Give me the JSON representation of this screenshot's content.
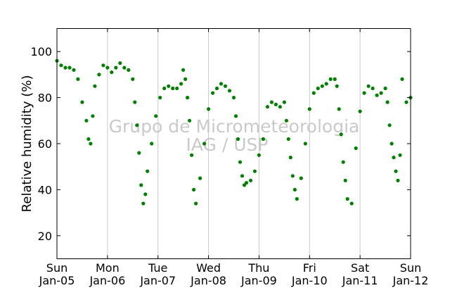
{
  "chart_data": {
    "type": "scatter",
    "ylabel": "Relative humidity (%)",
    "ylim": [
      10,
      110
    ],
    "yticks": [
      20,
      40,
      60,
      80,
      100
    ],
    "xlim": [
      "Jan-05",
      "Jan-12"
    ],
    "xticks": [
      {
        "day": "Sun",
        "date": "Jan-05"
      },
      {
        "day": "Mon",
        "date": "Jan-06"
      },
      {
        "day": "Tue",
        "date": "Jan-07"
      },
      {
        "day": "Wed",
        "date": "Jan-08"
      },
      {
        "day": "Thu",
        "date": "Jan-09"
      },
      {
        "day": "Fri",
        "date": "Jan-10"
      },
      {
        "day": "Sat",
        "date": "Jan-11"
      },
      {
        "day": "Sun",
        "date": "Jan-12"
      }
    ],
    "vertical_grid": true,
    "watermark": [
      "Grupo de Micrometeorologia",
      "IAG / USP"
    ],
    "marker_color": "#007f00",
    "series": [
      {
        "name": "",
        "x": [
          "Jan-05 00:00",
          "Jan-05 02:00",
          "Jan-05 04:00",
          "Jan-05 06:00",
          "Jan-05 08:00",
          "Jan-05 10:00",
          "Jan-05 12:00",
          "Jan-05 14:00",
          "Jan-05 15:00",
          "Jan-05 16:00",
          "Jan-05 17:00",
          "Jan-05 18:00",
          "Jan-05 20:00",
          "Jan-05 22:00",
          "Jan-06 00:00",
          "Jan-06 02:00",
          "Jan-06 04:00",
          "Jan-06 06:00",
          "Jan-06 08:00",
          "Jan-06 10:00",
          "Jan-06 12:00",
          "Jan-06 13:00",
          "Jan-06 14:00",
          "Jan-06 15:00",
          "Jan-06 16:00",
          "Jan-06 17:00",
          "Jan-06 18:00",
          "Jan-06 19:00",
          "Jan-06 21:00",
          "Jan-06 23:00",
          "Jan-07 01:00",
          "Jan-07 03:00",
          "Jan-07 05:00",
          "Jan-07 07:00",
          "Jan-07 09:00",
          "Jan-07 11:00",
          "Jan-07 12:00",
          "Jan-07 13:00",
          "Jan-07 14:00",
          "Jan-07 15:00",
          "Jan-07 16:00",
          "Jan-07 17:00",
          "Jan-07 18:00",
          "Jan-07 20:00",
          "Jan-07 22:00",
          "Jan-08 00:00",
          "Jan-08 02:00",
          "Jan-08 04:00",
          "Jan-08 06:00",
          "Jan-08 08:00",
          "Jan-08 10:00",
          "Jan-08 12:00",
          "Jan-08 13:00",
          "Jan-08 14:00",
          "Jan-08 15:00",
          "Jan-08 16:00",
          "Jan-08 17:00",
          "Jan-08 18:00",
          "Jan-08 20:00",
          "Jan-08 22:00",
          "Jan-09 00:00",
          "Jan-09 02:00",
          "Jan-09 04:00",
          "Jan-09 06:00",
          "Jan-09 08:00",
          "Jan-09 10:00",
          "Jan-09 12:00",
          "Jan-09 13:00",
          "Jan-09 14:00",
          "Jan-09 15:00",
          "Jan-09 16:00",
          "Jan-09 17:00",
          "Jan-09 18:00",
          "Jan-09 20:00",
          "Jan-09 22:00",
          "Jan-10 00:00",
          "Jan-10 02:00",
          "Jan-10 04:00",
          "Jan-10 06:00",
          "Jan-10 08:00",
          "Jan-10 10:00",
          "Jan-10 12:00",
          "Jan-10 13:00",
          "Jan-10 14:00",
          "Jan-10 15:00",
          "Jan-10 16:00",
          "Jan-10 17:00",
          "Jan-10 18:00",
          "Jan-10 20:00",
          "Jan-10 22:00",
          "Jan-11 00:00",
          "Jan-11 02:00",
          "Jan-11 04:00",
          "Jan-11 06:00",
          "Jan-11 08:00",
          "Jan-11 10:00",
          "Jan-11 12:00",
          "Jan-11 13:00",
          "Jan-11 14:00",
          "Jan-11 15:00",
          "Jan-11 16:00",
          "Jan-11 17:00",
          "Jan-11 18:00",
          "Jan-11 19:00",
          "Jan-11 20:00",
          "Jan-11 22:00",
          "Jan-12 00:00"
        ],
        "y": [
          96,
          94,
          93,
          93,
          92,
          88,
          78,
          70,
          62,
          60,
          72,
          85,
          90,
          94,
          93,
          91,
          93,
          95,
          93,
          92,
          88,
          78,
          68,
          56,
          42,
          34,
          38,
          48,
          60,
          72,
          80,
          84,
          85,
          84,
          84,
          86,
          92,
          88,
          80,
          70,
          55,
          40,
          34,
          45,
          60,
          75,
          82,
          84,
          86,
          85,
          83,
          80,
          72,
          62,
          52,
          46,
          42,
          43,
          44,
          48,
          55,
          62,
          76,
          78,
          77,
          76,
          78,
          70,
          62,
          54,
          46,
          40,
          36,
          45,
          60,
          75,
          82,
          84,
          85,
          86,
          88,
          88,
          85,
          75,
          64,
          52,
          44,
          36,
          34,
          58,
          74,
          82,
          85,
          84,
          81,
          82,
          84,
          78,
          68,
          60,
          54,
          48,
          44,
          55,
          88,
          78,
          80
        ]
      }
    ]
  }
}
